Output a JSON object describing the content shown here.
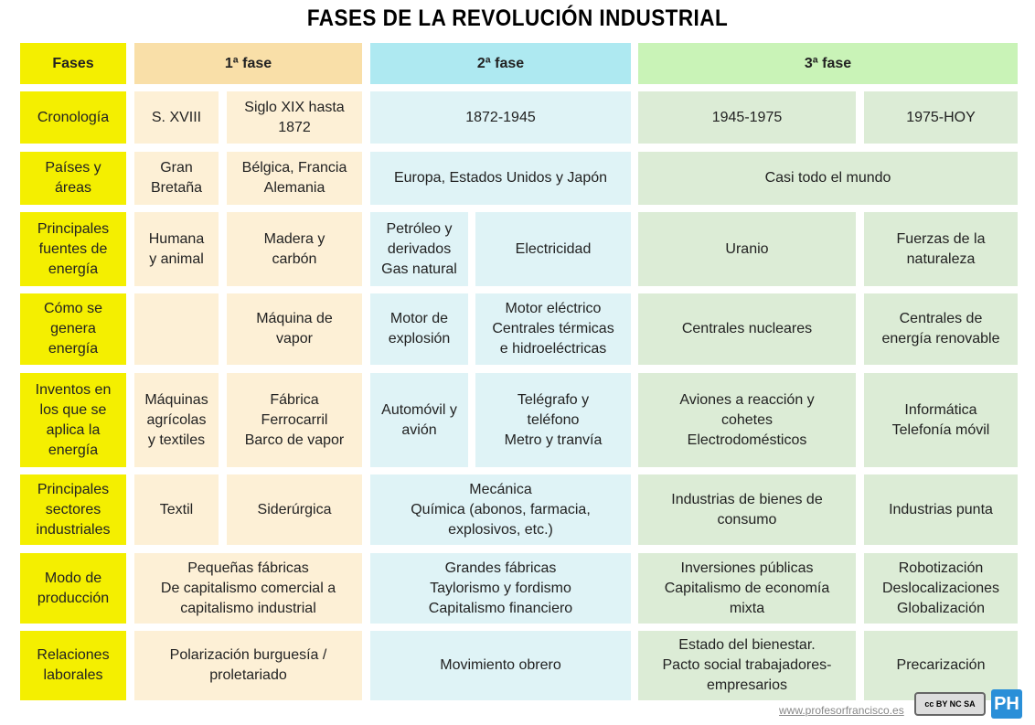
{
  "title": "FASES DE LA REVOLUCIÓN INDUSTRIAL",
  "table": {
    "header": [
      "Fases",
      "1ª fase",
      "2ª fase",
      "3ª fase"
    ],
    "rows": [
      [
        "Cronología",
        "S. XVIII",
        "Siglo XIX hasta\n1872",
        "1872-1945",
        "1945-1975",
        "1975-HOY"
      ],
      [
        "Países y\náreas",
        "Gran\nBretaña",
        "Bélgica, Francia\nAlemania",
        "Europa, Estados Unidos y Japón",
        "Casi todo el mundo"
      ],
      [
        "Principales\nfuentes de\nenergía",
        "Humana\ny animal",
        "Madera y\ncarbón",
        "Petróleo y\nderivados\nGas natural",
        "Electricidad",
        "Uranio",
        "Fuerzas de la\nnaturaleza"
      ],
      [
        "Cómo se\ngenera\nenergía",
        null,
        "Máquina de\nvapor",
        "Motor de\nexplosión",
        "Motor eléctrico\nCentrales térmicas\ne hidroeléctricas",
        "Centrales nucleares",
        "Centrales de\nenergía renovable"
      ],
      [
        "Inventos en\nlos que se\naplica la\nenergía",
        "Máquinas\nagrícolas\ny textiles",
        "Fábrica\nFerrocarril\nBarco de vapor",
        "Automóvil y\navión",
        "Telégrafo y\nteléfono\nMetro y tranvía",
        "Aviones a reacción y\ncohetes\nElectrodomésticos",
        "Informática\nTelefonía móvil"
      ],
      [
        "Principales\nsectores\nindustriales",
        "Textil",
        "Siderúrgica",
        "Mecánica\nQuímica (abonos, farmacia,\nexplosivos, etc.)",
        "Industrias de bienes de\nconsumo",
        "Industrias punta"
      ],
      [
        "Modo de\nproducción",
        "Pequeñas fábricas\nDe capitalismo comercial a\ncapitalismo industrial",
        "Grandes fábricas\nTaylorismo y fordismo\nCapitalismo financiero",
        "Inversiones públicas\nCapitalismo de economía\nmixta",
        "Robotización\nDeslocalizaciones\nGlobalización"
      ],
      [
        "Relaciones\nlaborales",
        "Polarización burguesía /\nproletariado",
        "Movimiento obrero",
        "Estado del bienestar.\nPacto social trabajadores-\nempresarios",
        "Precarización"
      ]
    ]
  },
  "footer": {
    "url": "www.profesorfrancisco.es",
    "license": "cc BY NC SA",
    "logo": "PH"
  }
}
